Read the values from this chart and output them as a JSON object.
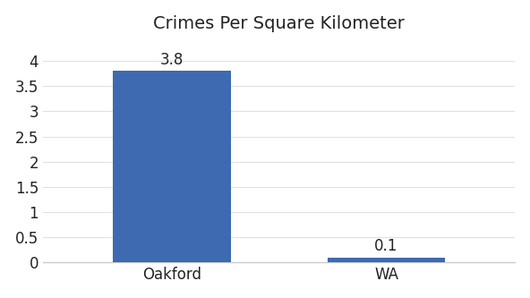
{
  "categories": [
    "Oakford",
    "WA"
  ],
  "values": [
    3.8,
    0.1
  ],
  "bar_color": "#3d6ab0",
  "title": "Crimes Per Square Kilometer",
  "title_fontsize": 14,
  "label_fontsize": 12,
  "value_fontsize": 12,
  "ylim": [
    0,
    4.4
  ],
  "yticks": [
    0,
    0.5,
    1,
    1.5,
    2,
    2.5,
    3,
    3.5,
    4
  ],
  "bar_width": 0.55,
  "background_color": "#ffffff",
  "spine_color": "#cccccc",
  "grid_color": "#e0e0e0",
  "text_color": "#222222"
}
